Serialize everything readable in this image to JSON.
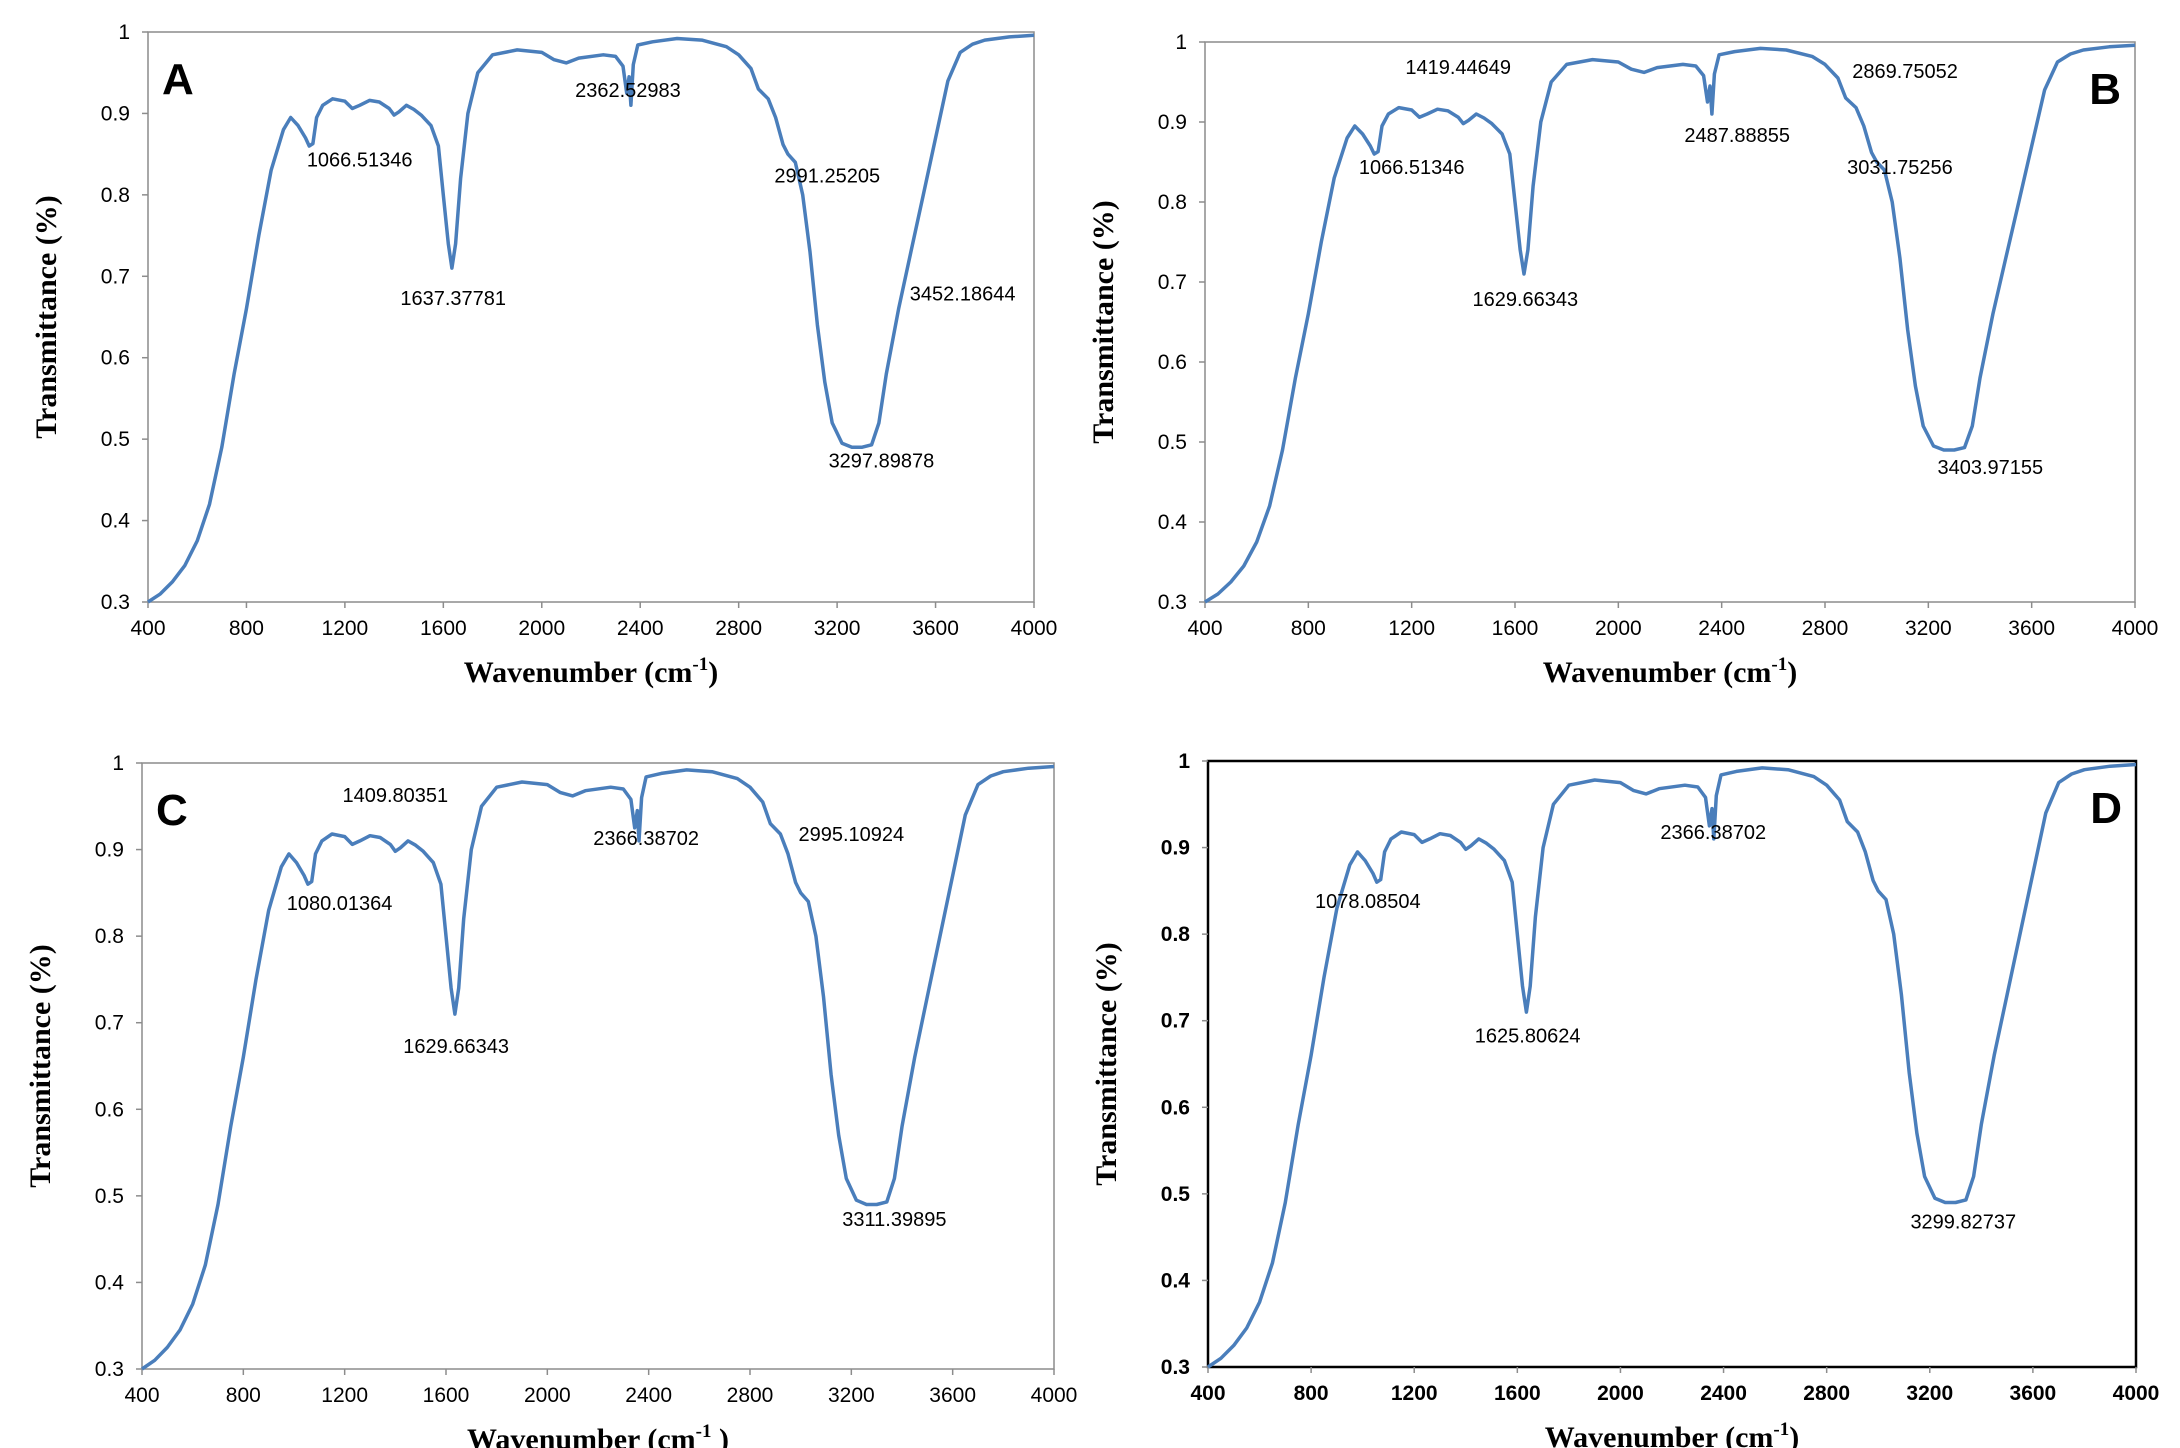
{
  "chart_data": [
    {
      "type": "line",
      "panel_label": "A",
      "xlabel": "Wavenumber (cm",
      "xlabel_sup": "-1",
      "xlabel_tail": ")",
      "ylabel": "Transmittance (%)",
      "xlim": [
        400,
        4000
      ],
      "ylim": [
        0.3,
        1.0
      ],
      "xticks": [
        "400",
        "800",
        "1200",
        "1600",
        "2000",
        "2400",
        "2800",
        "3200",
        "3600",
        "4000"
      ],
      "yticks": [
        "0.3",
        "0.4",
        "0.5",
        "0.6",
        "0.7",
        "0.8",
        "0.9",
        "1"
      ],
      "series": [
        {
          "name": "A",
          "color": "#4a7ebb"
        }
      ],
      "annotations": [
        {
          "text": "1066.51346",
          "x": 1260,
          "y": 0.835
        },
        {
          "text": "1637.37781",
          "x": 1640,
          "y": 0.665
        },
        {
          "text": "2362.52983",
          "x": 2350,
          "y": 0.92
        },
        {
          "text": "2991.25205",
          "x": 3160,
          "y": 0.815
        },
        {
          "text": "3452.18644",
          "x": 3710,
          "y": 0.67
        },
        {
          "text": "3297.89878",
          "x": 3380,
          "y": 0.465
        }
      ]
    },
    {
      "type": "line",
      "panel_label": "B",
      "xlabel": "Wavenumber (cm",
      "xlabel_sup": "-1",
      "xlabel_tail": ")",
      "ylabel": "Transmittance (%)",
      "xlim": [
        400,
        4000
      ],
      "ylim": [
        0.3,
        1.0
      ],
      "xticks": [
        "400",
        "800",
        "1200",
        "1600",
        "2000",
        "2400",
        "2800",
        "3200",
        "3600",
        "4000"
      ],
      "yticks": [
        "0.3",
        "0.4",
        "0.5",
        "0.6",
        "0.7",
        "0.8",
        "0.9",
        "1"
      ],
      "series": [
        {
          "name": "B",
          "color": "#4a7ebb"
        }
      ],
      "annotations": [
        {
          "text": "1419.44649",
          "x": 1380,
          "y": 0.96
        },
        {
          "text": "1066.51346",
          "x": 1200,
          "y": 0.835
        },
        {
          "text": "1629.66343",
          "x": 1640,
          "y": 0.67
        },
        {
          "text": "2487.88855",
          "x": 2460,
          "y": 0.875
        },
        {
          "text": "2869.75052",
          "x": 3110,
          "y": 0.955
        },
        {
          "text": "3031.75256",
          "x": 3090,
          "y": 0.835
        },
        {
          "text": "3403.97155",
          "x": 3440,
          "y": 0.46
        }
      ]
    },
    {
      "type": "line",
      "panel_label": "C",
      "xlabel": "Wavenumber (cm",
      "xlabel_sup": "-1",
      "xlabel_tail": " )",
      "ylabel": "Transmittance (%)",
      "xlim": [
        400,
        4000
      ],
      "ylim": [
        0.3,
        1.0
      ],
      "xticks": [
        "400",
        "800",
        "1200",
        "1600",
        "2000",
        "2400",
        "2800",
        "3200",
        "3600",
        "4000"
      ],
      "yticks": [
        "0.3",
        "0.4",
        "0.5",
        "0.6",
        "0.7",
        "0.8",
        "0.9",
        "1"
      ],
      "series": [
        {
          "name": "C",
          "color": "#4a7ebb"
        }
      ],
      "annotations": [
        {
          "text": "1409.80351",
          "x": 1400,
          "y": 0.955
        },
        {
          "text": "1080.01364",
          "x": 1180,
          "y": 0.83
        },
        {
          "text": "1629.66343",
          "x": 1640,
          "y": 0.665
        },
        {
          "text": "2366.38702",
          "x": 2390,
          "y": 0.905
        },
        {
          "text": "2995.10924",
          "x": 3200,
          "y": 0.91
        },
        {
          "text": "3311.39895",
          "x": 3370,
          "y": 0.465
        }
      ]
    },
    {
      "type": "line",
      "panel_label": "D",
      "xlabel": "Wavenumber (cm",
      "xlabel_sup": "-1",
      "xlabel_tail": ")",
      "ylabel": "Transmittance (%)",
      "xlim": [
        400,
        4000
      ],
      "ylim": [
        0.3,
        1.0
      ],
      "xticks": [
        "400",
        "800",
        "1200",
        "1600",
        "2000",
        "2400",
        "2800",
        "3200",
        "3600",
        "4000"
      ],
      "yticks": [
        "0.3",
        "0.4",
        "0.5",
        "0.6",
        "0.7",
        "0.8",
        "0.9",
        "1"
      ],
      "series": [
        {
          "name": "D",
          "color": "#4a7ebb"
        }
      ],
      "annotations": [
        {
          "text": "1078.08504",
          "x": 1020,
          "y": 0.83
        },
        {
          "text": "1625.80624",
          "x": 1640,
          "y": 0.675
        },
        {
          "text": "2366.38702",
          "x": 2360,
          "y": 0.91
        },
        {
          "text": "3299.82737",
          "x": 3330,
          "y": 0.46
        }
      ]
    }
  ]
}
